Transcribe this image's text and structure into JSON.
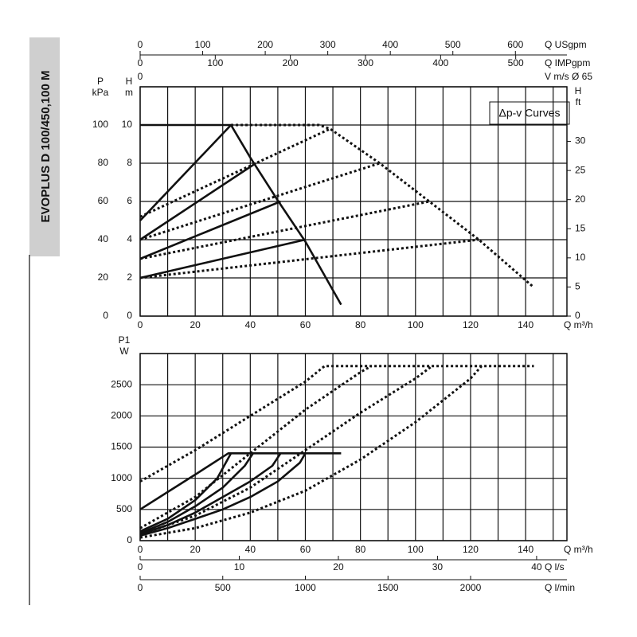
{
  "chart_data": [
    {
      "type": "line",
      "title": "EVOPLUS D 100/450,100 M",
      "annotation": "Δp-v Curves",
      "xlabel": "Q m³/h",
      "xlim": [
        0,
        155
      ],
      "xticks": [
        0,
        20,
        40,
        60,
        80,
        100,
        120,
        140
      ],
      "xgrid": [
        0,
        10,
        20,
        30,
        40,
        50,
        60,
        70,
        80,
        90,
        100,
        110,
        120,
        130,
        140,
        150
      ],
      "ylabel": [
        "H",
        "m"
      ],
      "ylim": [
        0,
        12
      ],
      "yticks": [
        0,
        2,
        4,
        6,
        8,
        10
      ],
      "ygrid": [
        0,
        2,
        4,
        6,
        8,
        10,
        12
      ],
      "y_kpa": {
        "label": [
          "P",
          "kPa"
        ],
        "lim": [
          0,
          120
        ],
        "ticks": [
          0,
          20,
          40,
          60,
          80,
          100
        ]
      },
      "y2label": [
        "H",
        "ft"
      ],
      "y2lim": [
        0,
        39.37
      ],
      "y2ticks": [
        0,
        5,
        10,
        15,
        20,
        25,
        30
      ],
      "top_axes": [
        {
          "label": "Q USgpm",
          "lim": [
            0,
            682.4
          ],
          "ticks": [
            0,
            100,
            200,
            300,
            400,
            500,
            600
          ]
        },
        {
          "label": "Q IMPgpm",
          "lim": [
            0,
            568.2
          ],
          "ticks": [
            0,
            100,
            200,
            300,
            400,
            500
          ]
        },
        {
          "label": "V m/s Ø 65",
          "lim": [
            0,
            12.98
          ],
          "ticks": [
            0
          ]
        }
      ],
      "series": [
        {
          "style": "solid",
          "color": "#111111",
          "x": [
            0,
            33,
            40,
            50,
            60,
            73
          ],
          "values": [
            10,
            10,
            8.3,
            6.05,
            3.9,
            0.6
          ]
        },
        {
          "style": "solid",
          "color": "#111111",
          "x": [
            0,
            33
          ],
          "values": [
            5,
            10
          ]
        },
        {
          "style": "solid",
          "color": "#111111",
          "x": [
            0,
            42
          ],
          "values": [
            4,
            8
          ]
        },
        {
          "style": "solid",
          "color": "#111111",
          "x": [
            0,
            51
          ],
          "values": [
            3,
            6
          ]
        },
        {
          "style": "solid",
          "color": "#111111",
          "x": [
            0,
            60
          ],
          "values": [
            2,
            4
          ]
        },
        {
          "style": "dotted",
          "color": "#111111",
          "x": [
            33,
            65,
            69,
            87,
            105,
            123,
            143
          ],
          "values": [
            10,
            10,
            9.8,
            8,
            6,
            4,
            1.5
          ]
        },
        {
          "style": "dotted",
          "color": "#111111",
          "x": [
            0,
            69
          ],
          "values": [
            5.2,
            9.8
          ]
        },
        {
          "style": "dotted",
          "color": "#111111",
          "x": [
            0,
            87
          ],
          "values": [
            4,
            8
          ]
        },
        {
          "style": "dotted",
          "color": "#111111",
          "x": [
            0,
            105
          ],
          "values": [
            3,
            6
          ]
        },
        {
          "style": "dotted",
          "color": "#111111",
          "x": [
            0,
            123
          ],
          "values": [
            2,
            4
          ]
        }
      ]
    },
    {
      "type": "line",
      "xlabel": "Q m³/h",
      "xlim": [
        0,
        155
      ],
      "xticks": [
        0,
        20,
        40,
        60,
        80,
        100,
        120,
        140
      ],
      "xgrid": [
        0,
        10,
        20,
        30,
        40,
        50,
        60,
        70,
        80,
        90,
        100,
        110,
        120,
        130,
        140,
        150
      ],
      "ylabel": [
        "P1",
        "W"
      ],
      "ylim": [
        0,
        3000
      ],
      "yticks": [
        0,
        500,
        1000,
        1500,
        2000,
        2500
      ],
      "ygrid": [
        0,
        500,
        1000,
        1500,
        2000,
        2500,
        3000
      ],
      "bottom_axes": [
        {
          "label": "Q l/s",
          "lim": [
            0,
            43.06
          ],
          "ticks": [
            0,
            10,
            20,
            30,
            40
          ]
        },
        {
          "label": "Q l/min",
          "lim": [
            0,
            2583
          ],
          "ticks": [
            0,
            500,
            1000,
            1500,
            2000
          ]
        }
      ],
      "series": [
        {
          "style": "solid",
          "color": "#111111",
          "x": [
            0,
            10,
            20,
            32,
            73
          ],
          "values": [
            500,
            780,
            1060,
            1400,
            1400
          ]
        },
        {
          "style": "solid",
          "color": "#111111",
          "x": [
            0,
            10,
            20,
            28,
            33
          ],
          "values": [
            150,
            350,
            650,
            1000,
            1400
          ]
        },
        {
          "style": "solid",
          "color": "#111111",
          "x": [
            0,
            10,
            20,
            30,
            38,
            41
          ],
          "values": [
            120,
            300,
            550,
            850,
            1200,
            1400
          ]
        },
        {
          "style": "solid",
          "color": "#111111",
          "x": [
            0,
            10,
            20,
            30,
            40,
            48,
            51
          ],
          "values": [
            100,
            250,
            450,
            700,
            950,
            1200,
            1400
          ]
        },
        {
          "style": "solid",
          "color": "#111111",
          "x": [
            0,
            10,
            20,
            30,
            40,
            50,
            58,
            60
          ],
          "values": [
            80,
            200,
            350,
            500,
            700,
            950,
            1250,
            1400
          ]
        },
        {
          "style": "dotted",
          "color": "#111111",
          "x": [
            0,
            20,
            40,
            60,
            67,
            143
          ],
          "values": [
            950,
            1450,
            2000,
            2550,
            2800,
            2800
          ]
        },
        {
          "style": "dotted",
          "color": "#111111",
          "x": [
            0,
            20,
            40,
            60,
            80,
            84
          ],
          "values": [
            200,
            700,
            1400,
            2100,
            2700,
            2800
          ]
        },
        {
          "style": "dotted",
          "color": "#111111",
          "x": [
            0,
            20,
            40,
            60,
            80,
            100,
            106
          ],
          "values": [
            100,
            400,
            850,
            1450,
            2050,
            2600,
            2800
          ]
        },
        {
          "style": "dotted",
          "color": "#111111",
          "x": [
            0,
            20,
            40,
            60,
            80,
            100,
            120,
            124
          ],
          "values": [
            50,
            200,
            450,
            800,
            1300,
            1900,
            2600,
            2800
          ]
        }
      ]
    }
  ]
}
